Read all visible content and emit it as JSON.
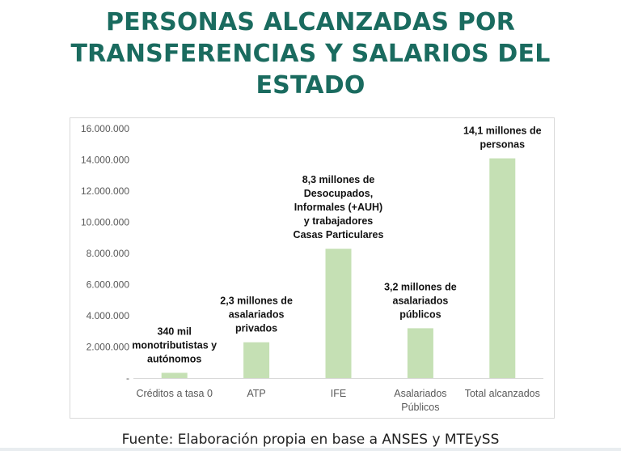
{
  "header": {
    "title_lines": [
      "PERSONAS ALCANZADAS POR",
      "TRANSFERENCIAS Y SALARIOS DEL",
      "ESTADO"
    ]
  },
  "chart_data": {
    "type": "bar",
    "categories": [
      [
        "Créditos a tasa 0"
      ],
      [
        "ATP"
      ],
      [
        "IFE"
      ],
      [
        "Asalariados",
        "Públicos"
      ],
      [
        "Total alcanzados"
      ]
    ],
    "values": [
      340000,
      2300000,
      8300000,
      3200000,
      14100000
    ],
    "data_labels": [
      [
        "340 mil",
        "monotributistas y",
        "autónomos"
      ],
      [
        "2,3 millones de",
        "asalariados",
        "privados"
      ],
      [
        "8,3 millones de",
        "Desocupados,",
        "Informales (+AUH)",
        "y trabajadores",
        "Casas Particulares"
      ],
      [
        "3,2 millones de",
        "asalariados",
        "públicos"
      ],
      [
        "14,1 millones de",
        "personas"
      ]
    ],
    "y_ticks": [
      {
        "value": 0,
        "label": "-"
      },
      {
        "value": 2000000,
        "label": "2.000.000"
      },
      {
        "value": 4000000,
        "label": "4.000.000"
      },
      {
        "value": 6000000,
        "label": "6.000.000"
      },
      {
        "value": 8000000,
        "label": "8.000.000"
      },
      {
        "value": 10000000,
        "label": "10.000.000"
      },
      {
        "value": 12000000,
        "label": "12.000.000"
      },
      {
        "value": 14000000,
        "label": "14.000.000"
      },
      {
        "value": 16000000,
        "label": "16.000.000"
      }
    ],
    "ylim": [
      0,
      16000000
    ],
    "grid": false,
    "legend": "none",
    "bar_color": "#c5e0b4",
    "title": "",
    "xlabel": "",
    "ylabel": ""
  },
  "footer": {
    "source": "Fuente: Elaboración propia en base a ANSES y MTEySS"
  }
}
